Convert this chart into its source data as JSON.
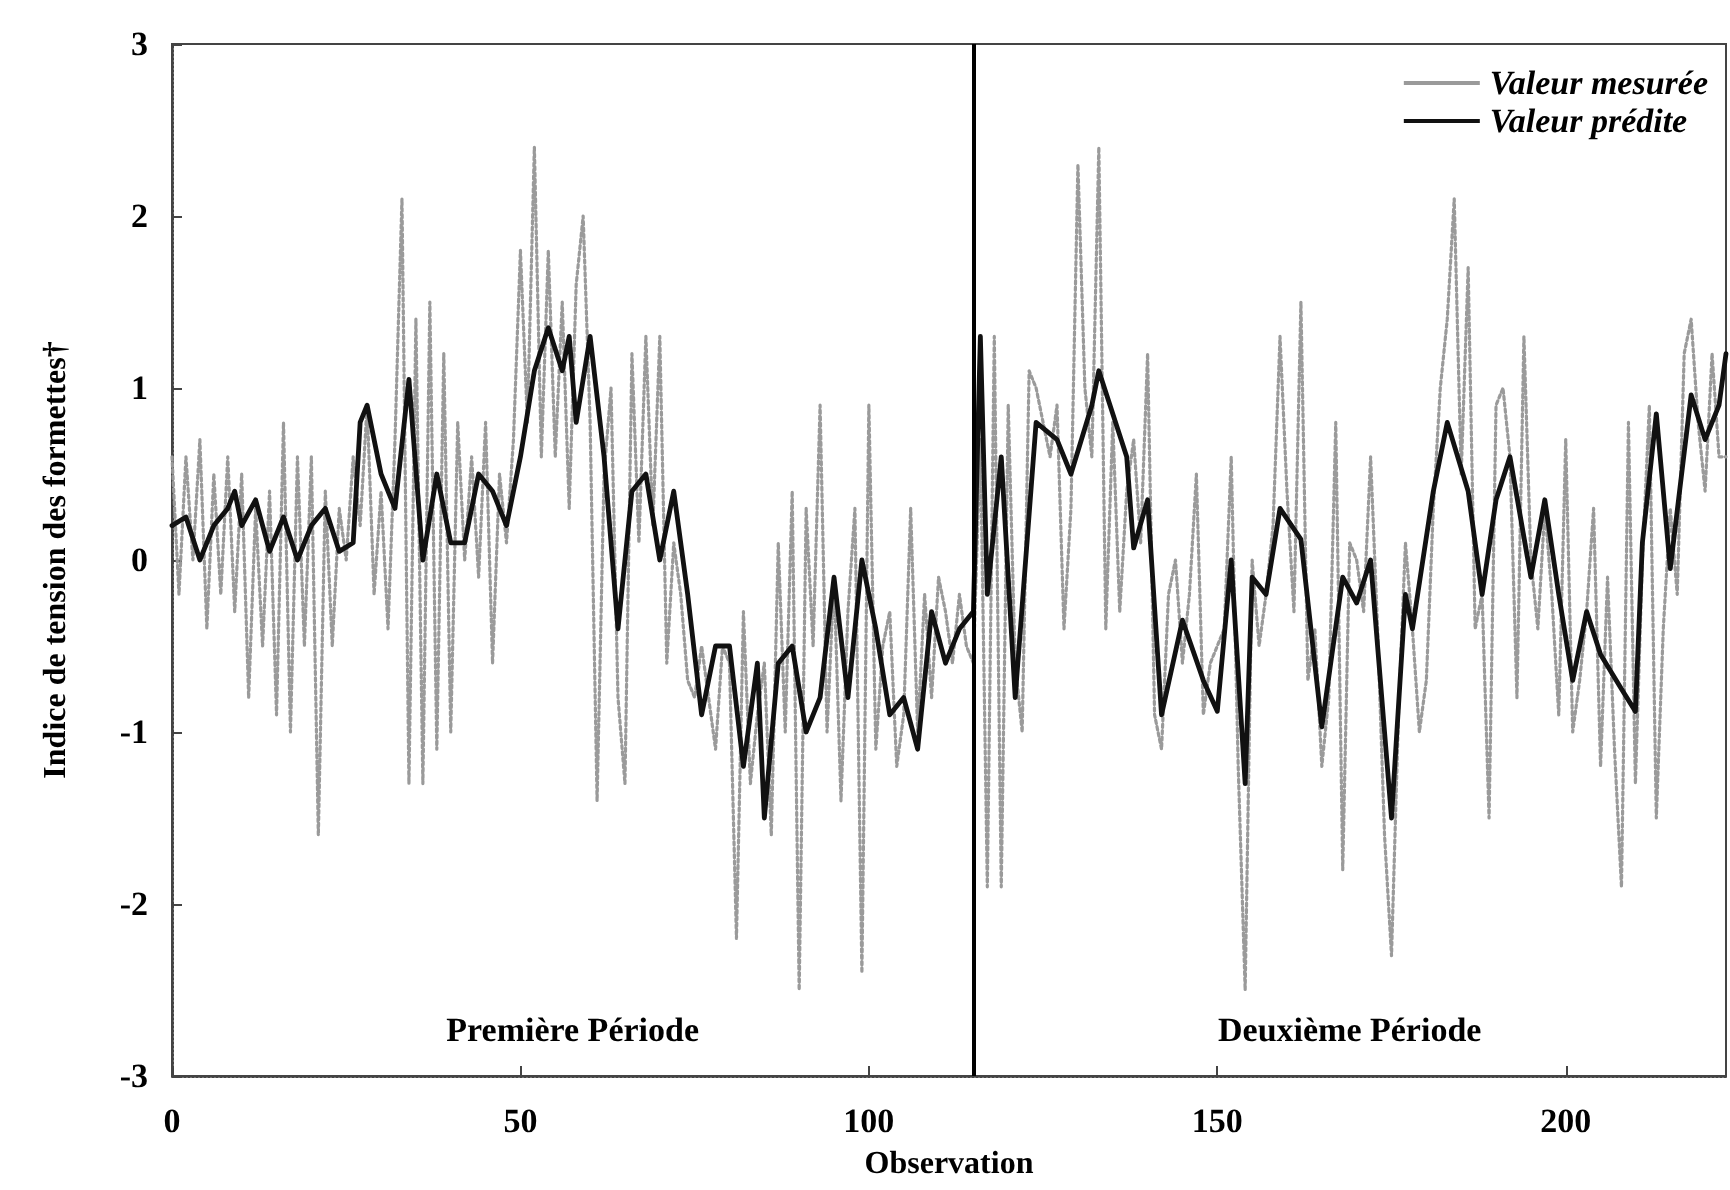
{
  "chart_data": {
    "type": "line",
    "xlabel": "Observation",
    "ylabel": "Indice de tension des formettes†",
    "xlim": [
      0,
      223
    ],
    "xticks": [
      0,
      50,
      100,
      150,
      200
    ],
    "ylim": [
      -3,
      3
    ],
    "yticks": [
      -3,
      -2,
      -1,
      0,
      1,
      2,
      3
    ],
    "grid": false,
    "legend": "top right",
    "marker": "none",
    "series": [
      {
        "name": "Valeur mesurée",
        "color": "#9a9a9a",
        "line_style": "dotted",
        "x": [
          0,
          1,
          2,
          3,
          4,
          5,
          6,
          7,
          8,
          9,
          10,
          11,
          12,
          13,
          14,
          15,
          16,
          17,
          18,
          19,
          20,
          21,
          22,
          23,
          24,
          25,
          26,
          27,
          28,
          29,
          30,
          31,
          32,
          33,
          34,
          35,
          36,
          37,
          38,
          39,
          40,
          41,
          42,
          43,
          44,
          45,
          46,
          47,
          48,
          49,
          50,
          51,
          52,
          53,
          54,
          55,
          56,
          57,
          58,
          59,
          60,
          61,
          62,
          63,
          64,
          65,
          66,
          67,
          68,
          69,
          70,
          71,
          72,
          73,
          74,
          75,
          76,
          77,
          78,
          79,
          80,
          81,
          82,
          83,
          84,
          85,
          86,
          87,
          88,
          89,
          90,
          91,
          92,
          93,
          94,
          95,
          96,
          97,
          98,
          99,
          100,
          101,
          102,
          103,
          104,
          105,
          106,
          107,
          108,
          109,
          110,
          111,
          112,
          113,
          114,
          115,
          116,
          117,
          118,
          119,
          120,
          121,
          122,
          123,
          124,
          125,
          126,
          127,
          128,
          129,
          130,
          131,
          132,
          133,
          134,
          135,
          136,
          137,
          138,
          139,
          140,
          141,
          142,
          143,
          144,
          145,
          146,
          147,
          148,
          149,
          150,
          151,
          152,
          153,
          154,
          155,
          156,
          157,
          158,
          159,
          160,
          161,
          162,
          163,
          164,
          165,
          166,
          167,
          168,
          169,
          170,
          171,
          172,
          173,
          174,
          175,
          176,
          177,
          178,
          179,
          180,
          181,
          182,
          183,
          184,
          185,
          186,
          187,
          188,
          189,
          190,
          191,
          192,
          193,
          194,
          195,
          196,
          197,
          198,
          199,
          200,
          201,
          202,
          203,
          204,
          205,
          206,
          207,
          208,
          209,
          210,
          211,
          212,
          213,
          214,
          215,
          216,
          217,
          218,
          219,
          220,
          221,
          222,
          223
        ],
        "values": [
          0.6,
          -0.2,
          0.6,
          0.0,
          0.7,
          -0.4,
          0.5,
          -0.2,
          0.6,
          -0.3,
          0.5,
          -0.8,
          0.3,
          -0.5,
          0.4,
          -0.9,
          0.8,
          -1.0,
          0.6,
          -0.5,
          0.6,
          -1.6,
          0.4,
          -0.5,
          0.3,
          0.0,
          0.6,
          0.2,
          0.9,
          -0.2,
          0.4,
          -0.4,
          0.7,
          2.1,
          -1.3,
          1.4,
          -1.3,
          1.5,
          -1.1,
          1.2,
          -1.0,
          0.8,
          0.0,
          0.6,
          -0.1,
          0.8,
          -0.6,
          0.5,
          0.1,
          0.7,
          1.8,
          0.8,
          2.4,
          0.6,
          1.8,
          0.6,
          1.5,
          0.3,
          1.6,
          2.0,
          0.8,
          -1.4,
          0.5,
          1.0,
          -0.8,
          -1.3,
          1.2,
          0.1,
          1.3,
          0.2,
          1.3,
          -0.6,
          0.1,
          -0.2,
          -0.7,
          -0.8,
          -0.5,
          -0.8,
          -1.1,
          -0.5,
          -0.6,
          -2.2,
          -0.3,
          -1.3,
          -0.9,
          -0.6,
          -1.6,
          0.1,
          -1.0,
          0.4,
          -2.5,
          0.3,
          -0.5,
          0.9,
          -1.0,
          -0.1,
          -1.4,
          -0.3,
          0.3,
          -2.4,
          0.9,
          -1.1,
          -0.5,
          -0.3,
          -1.2,
          -0.9,
          0.3,
          -1.0,
          -0.2,
          -0.8,
          -0.1,
          -0.3,
          -0.6,
          -0.2,
          -0.5,
          -0.6,
          0.7,
          -1.9,
          1.3,
          -1.9,
          0.9,
          -0.6,
          -1.0,
          1.1,
          1.0,
          0.8,
          0.6,
          0.9,
          -0.4,
          0.3,
          2.3,
          1.0,
          0.6,
          2.4,
          -0.4,
          0.8,
          -0.3,
          0.4,
          0.7,
          0.1,
          1.2,
          -0.9,
          -1.1,
          -0.2,
          0.0,
          -0.6,
          -0.2,
          0.5,
          -0.9,
          -0.6,
          -0.5,
          -0.4,
          0.6,
          -1.2,
          -2.5,
          0.0,
          -0.5,
          -0.2,
          0.2,
          1.3,
          0.4,
          -0.3,
          1.5,
          -0.7,
          -0.4,
          -1.2,
          -0.8,
          0.8,
          -1.8,
          0.1,
          0.0,
          -0.3,
          0.6,
          -0.4,
          -1.6,
          -2.3,
          -0.9,
          0.1,
          -0.4,
          -1.0,
          -0.7,
          0.3,
          1.0,
          1.4,
          2.1,
          0.5,
          1.7,
          -0.4,
          -0.2,
          -1.5,
          0.9,
          1.0,
          0.6,
          -0.8,
          1.3,
          0.0,
          -0.4,
          0.3,
          -0.2,
          -0.9,
          0.7,
          -1.0,
          -0.7,
          -0.3,
          0.3,
          -1.2,
          -0.1,
          -1.1,
          -1.9,
          0.8,
          -1.3,
          0.0,
          0.9,
          -1.5,
          -0.4,
          0.3,
          -0.2,
          1.2,
          1.4,
          0.8,
          0.4,
          1.2,
          0.6,
          0.6
        ]
      },
      {
        "name": "Valeur prédite",
        "color": "#111111",
        "line_style": "solid",
        "x": [
          0,
          2,
          4,
          6,
          8,
          9,
          10,
          12,
          14,
          16,
          18,
          20,
          22,
          24,
          26,
          27,
          28,
          30,
          32,
          34,
          36,
          38,
          40,
          42,
          44,
          46,
          48,
          50,
          52,
          54,
          56,
          57,
          58,
          60,
          62,
          64,
          66,
          68,
          70,
          72,
          74,
          76,
          78,
          80,
          82,
          84,
          85,
          87,
          89,
          91,
          93,
          95,
          97,
          99,
          101,
          103,
          105,
          107,
          109,
          111,
          113,
          115,
          116,
          117,
          119,
          121,
          124,
          127,
          129,
          132,
          133,
          137,
          138,
          140,
          142,
          145,
          148,
          150,
          152,
          154,
          155,
          157,
          159,
          162,
          165,
          168,
          170,
          172,
          175,
          177,
          178,
          181,
          183,
          186,
          188,
          190,
          192,
          195,
          197,
          199,
          201,
          203,
          205,
          208,
          210,
          211,
          213,
          215,
          218,
          220,
          222,
          223
        ],
        "values": [
          0.2,
          0.25,
          0.0,
          0.2,
          0.3,
          0.4,
          0.2,
          0.35,
          0.05,
          0.25,
          0.0,
          0.2,
          0.3,
          0.05,
          0.1,
          0.8,
          0.9,
          0.5,
          0.3,
          1.05,
          0.0,
          0.5,
          0.1,
          0.1,
          0.5,
          0.4,
          0.2,
          0.6,
          1.1,
          1.35,
          1.1,
          1.3,
          0.8,
          1.3,
          0.6,
          -0.4,
          0.4,
          0.5,
          0.0,
          0.4,
          -0.2,
          -0.9,
          -0.5,
          -0.5,
          -1.2,
          -0.6,
          -1.5,
          -0.6,
          -0.5,
          -1.0,
          -0.8,
          -0.1,
          -0.8,
          0.0,
          -0.4,
          -0.9,
          -0.8,
          -1.1,
          -0.3,
          -0.6,
          -0.4,
          -0.3,
          1.3,
          -0.2,
          0.6,
          -0.8,
          0.8,
          0.7,
          0.5,
          0.9,
          1.1,
          0.6,
          0.07,
          0.35,
          -0.9,
          -0.35,
          -0.7,
          -0.88,
          0.0,
          -1.3,
          -0.1,
          -0.2,
          0.3,
          0.12,
          -0.97,
          -0.1,
          -0.25,
          0.0,
          -1.5,
          -0.2,
          -0.4,
          0.4,
          0.8,
          0.4,
          -0.2,
          0.35,
          0.6,
          -0.1,
          0.35,
          -0.2,
          -0.7,
          -0.3,
          -0.55,
          -0.75,
          -0.88,
          0.1,
          0.85,
          -0.05,
          0.96,
          0.7,
          0.9,
          1.2
        ]
      }
    ],
    "ref_lines": [
      {
        "axis": "x",
        "value": 115,
        "color": "#000000",
        "line_style": "solid"
      }
    ],
    "annotations": [
      "Première Période",
      "Deuxième Période"
    ]
  }
}
